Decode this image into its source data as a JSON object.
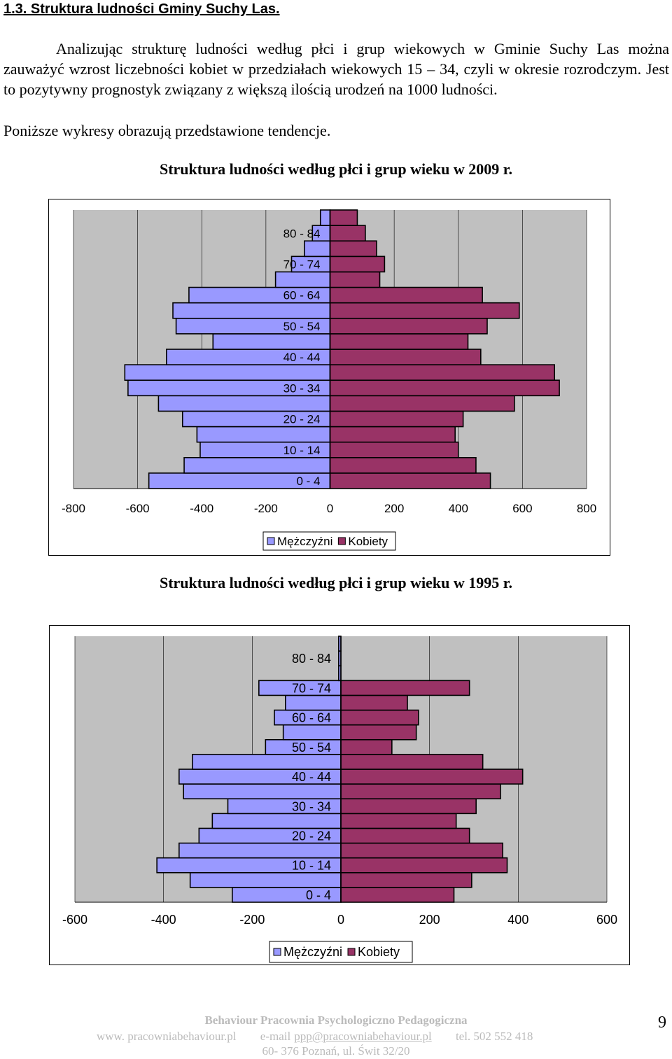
{
  "heading": "1.3. Struktura ludności Gminy Suchy Las.",
  "paragraphs": {
    "p1": "Analizując strukturę ludności według płci i grup wiekowych w Gminie Suchy Las można zauważyć wzrost liczebności kobiet w przedziałach wiekowych 15 – 34, czyli w okresie rozrodczym. Jest to pozytywny prognostyk związany z większą ilością urodzeń na 1000 ludności.",
    "p2": "Poniższe wykresy obrazują przedstawione tendencje."
  },
  "chart_data": [
    {
      "type": "bar",
      "orientation": "horizontal-population-pyramid",
      "title": "Struktura ludności według płci i grup wieku w 2009 r.",
      "categories": [
        "0 - 4",
        "5 - 9",
        "10 - 14",
        "15 - 19",
        "20 - 24",
        "25 - 29",
        "30 - 34",
        "35 - 39",
        "40 - 44",
        "45 - 49",
        "50 - 54",
        "55 - 59",
        "60 - 64",
        "65 - 69",
        "70 - 74",
        "75 - 79",
        "80 - 84",
        "85+"
      ],
      "category_labels_shown": [
        "0 - 4",
        "10 - 14",
        "20 - 24",
        "30 - 34",
        "40 - 44",
        "50 - 54",
        "60 - 64",
        "70 - 74",
        "80 - 84"
      ],
      "series": [
        {
          "name": "Mężczyźni",
          "color": "#9999ff",
          "values": [
            -565,
            -455,
            -405,
            -415,
            -460,
            -535,
            -630,
            -640,
            -510,
            -365,
            -480,
            -490,
            -440,
            -170,
            -120,
            -80,
            -55,
            -30
          ]
        },
        {
          "name": "Kobiety",
          "color": "#993366",
          "values": [
            500,
            455,
            400,
            390,
            415,
            575,
            715,
            700,
            470,
            430,
            490,
            590,
            475,
            155,
            170,
            145,
            110,
            85
          ]
        }
      ],
      "xlim": [
        -800,
        800
      ],
      "xticks": [
        "-800",
        "-600",
        "-400",
        "-200",
        "0",
        "200",
        "400",
        "600",
        "800"
      ],
      "legend": "bottom"
    },
    {
      "type": "bar",
      "orientation": "horizontal-population-pyramid",
      "title": "Struktura ludności według płci i grup wieku w 1995 r.",
      "categories": [
        "0 - 4",
        "5 - 9",
        "10 - 14",
        "15 - 19",
        "20 - 24",
        "25 - 29",
        "30 - 34",
        "35 - 39",
        "40 - 44",
        "45 - 49",
        "50 - 54",
        "55 - 59",
        "60 - 64",
        "65 - 69",
        "70 - 74",
        "75 - 79",
        "80 - 84",
        "85+"
      ],
      "category_labels_shown": [
        "0 - 4",
        "10 - 14",
        "20 - 24",
        "30 - 34",
        "40 - 44",
        "50 - 54",
        "60 - 64",
        "70 - 74",
        "80 - 84"
      ],
      "series": [
        {
          "name": "Mężczyźni",
          "color": "#9999ff",
          "values": [
            -245,
            -340,
            -415,
            -365,
            -320,
            -290,
            -255,
            -355,
            -365,
            -335,
            -170,
            -130,
            -150,
            -125,
            -185,
            -5,
            -5,
            -5
          ]
        },
        {
          "name": "Kobiety",
          "color": "#993366",
          "values": [
            255,
            295,
            375,
            365,
            290,
            260,
            305,
            360,
            410,
            320,
            115,
            170,
            175,
            150,
            290,
            0,
            0,
            0
          ]
        }
      ],
      "xlim": [
        -600,
        600
      ],
      "xticks": [
        "-600",
        "-400",
        "-200",
        "0",
        "200",
        "400",
        "600"
      ],
      "legend": "bottom"
    }
  ],
  "footer": {
    "org": "Behaviour Pracownia Psychologiczno Pedagogiczna",
    "www": "www. pracowniabehaviour.pl",
    "email_prefix": "e-mail",
    "email": "ppp@pracowniabehaviour.pl",
    "tel": "tel. 502 552 418",
    "address": "60- 376 Poznań, ul. Świt 32/20"
  },
  "page_number": "9"
}
